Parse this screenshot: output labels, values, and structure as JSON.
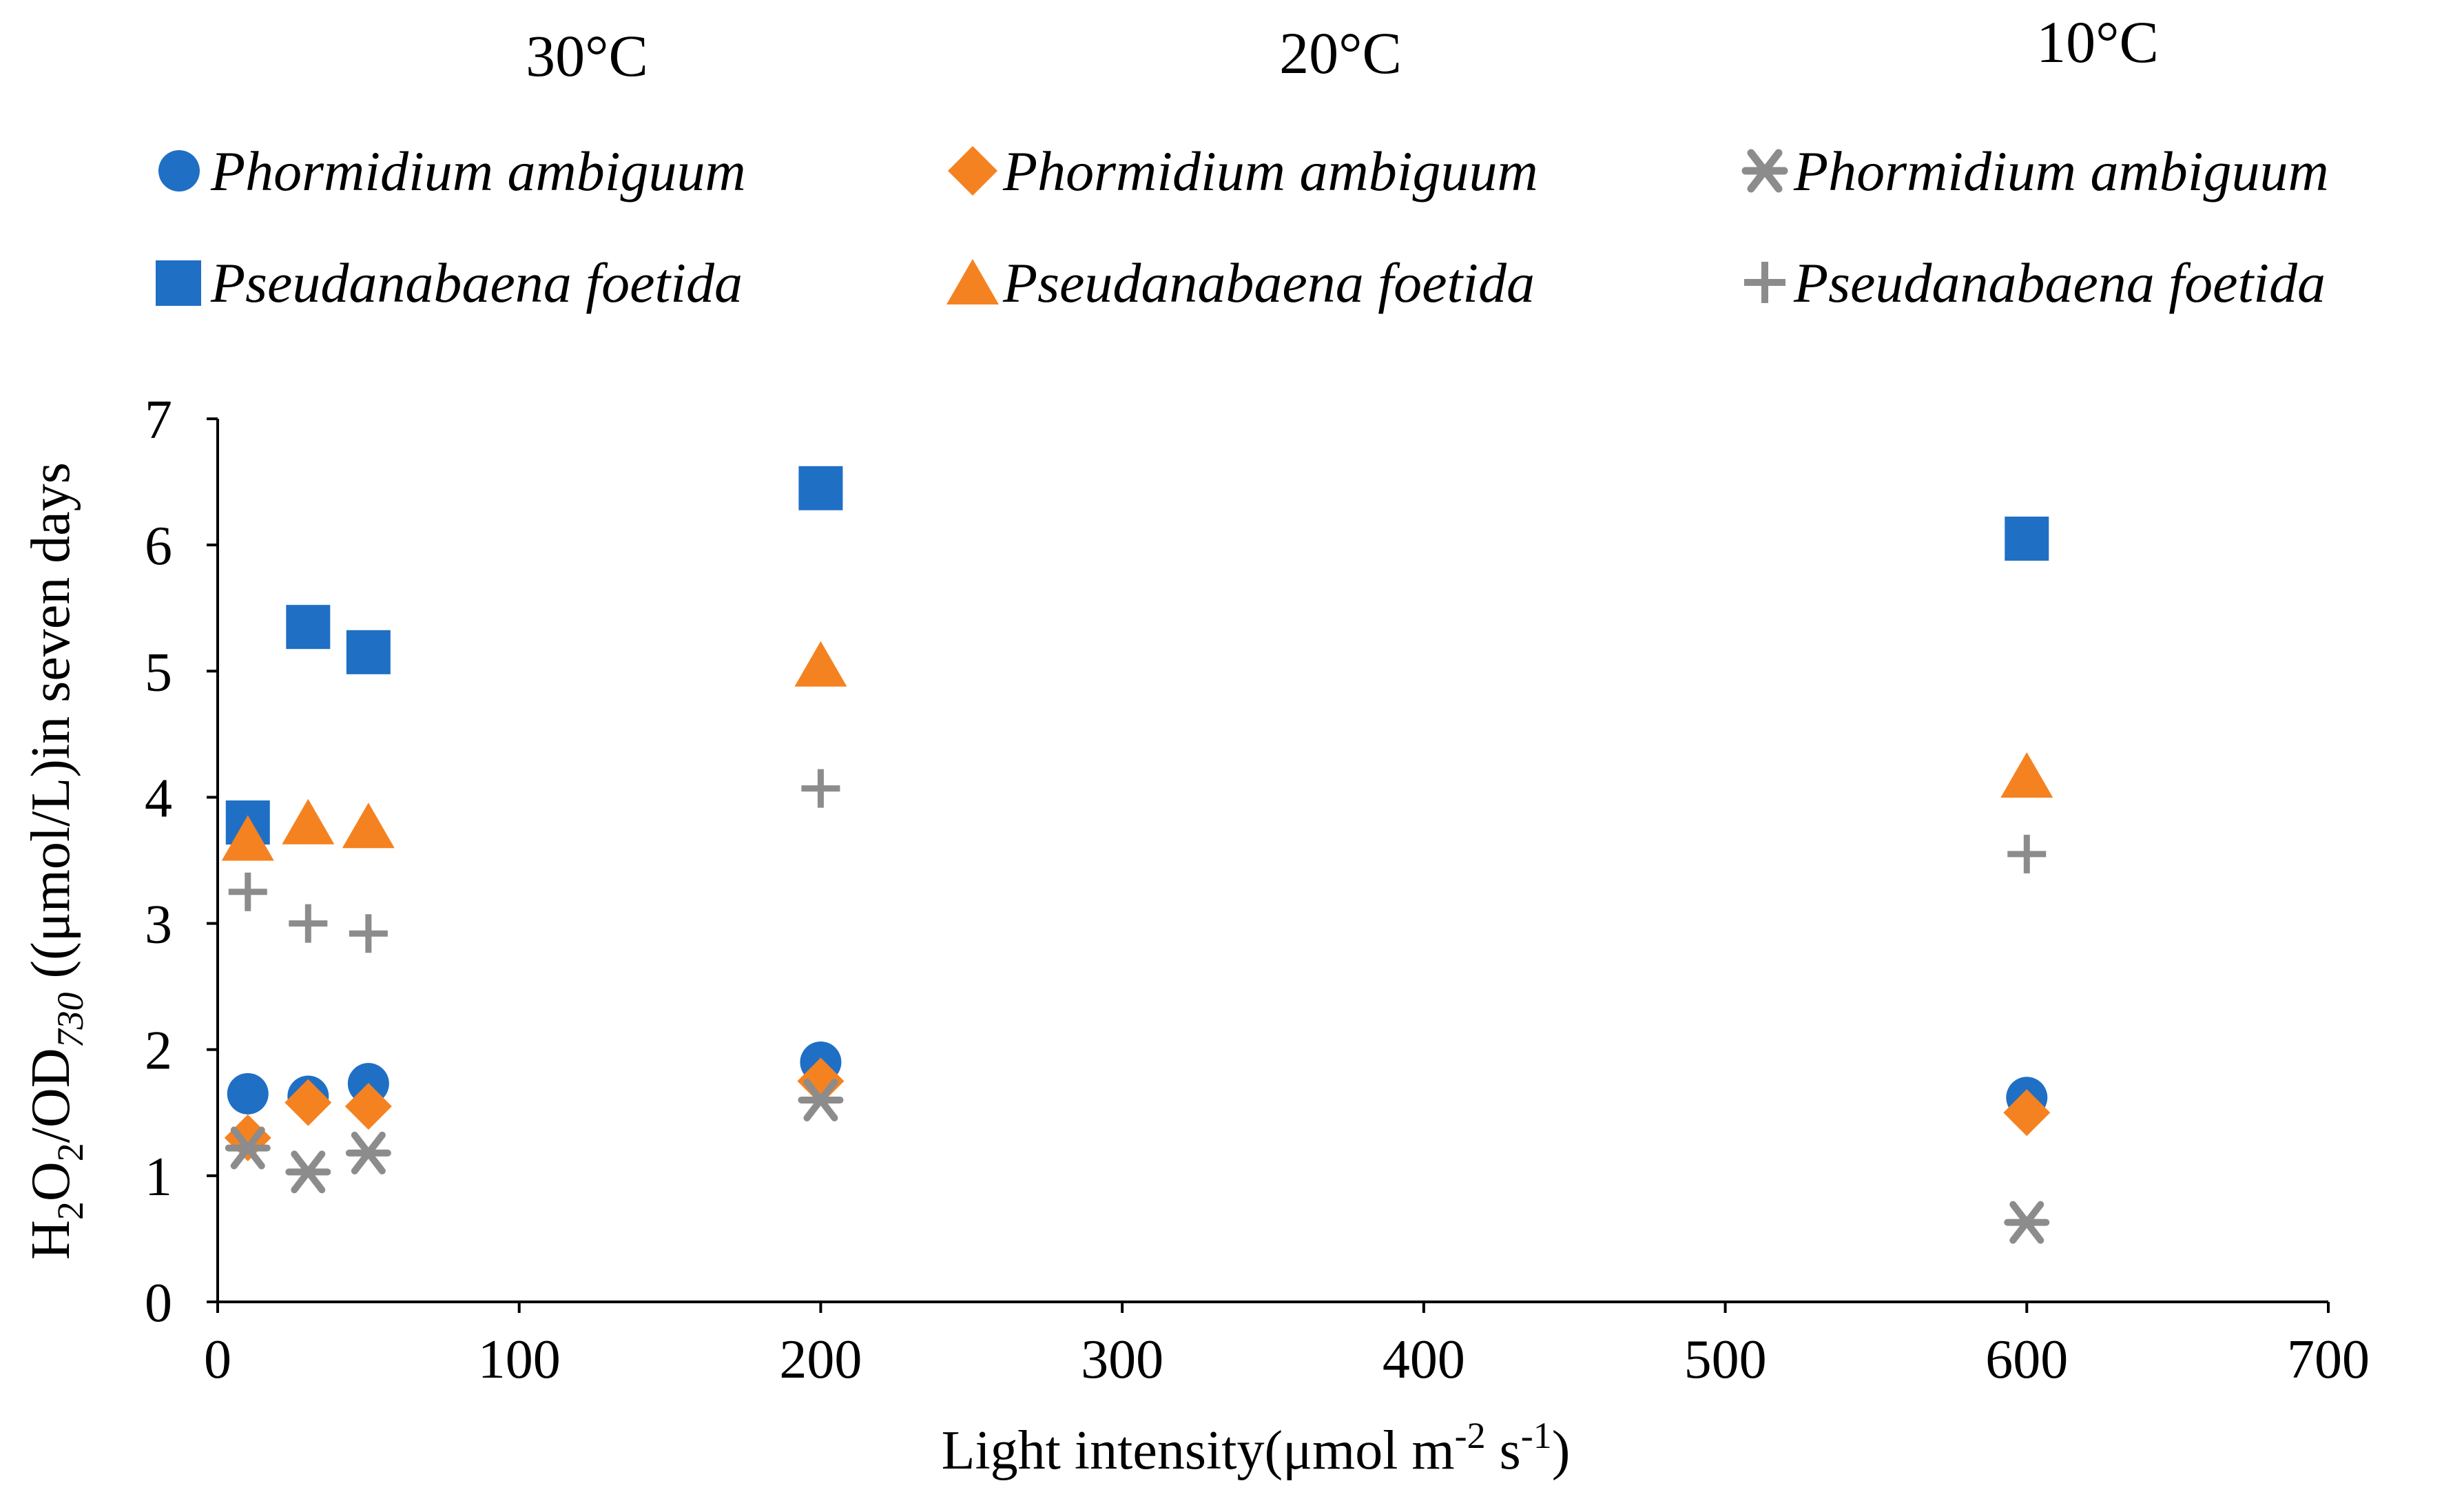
{
  "chart_data": {
    "type": "scatter",
    "title": "",
    "group_headers": [
      "30°C",
      "20°C",
      "10°C"
    ],
    "xlabel": {
      "text": "Light intensity(μmol m",
      "sup1": "-2",
      "mid": " s",
      "sup2": "-1",
      "end": ")"
    },
    "ylabel": {
      "p1": "H",
      "s1": "2",
      "p2": "O",
      "s2": "2",
      "p3": "/OD",
      "s3": "730",
      "p4": " ((μmol/L)in seven days"
    },
    "xlim": [
      0,
      700
    ],
    "ylim": [
      0,
      7
    ],
    "x_ticks": [
      0,
      100,
      200,
      300,
      400,
      500,
      600,
      700
    ],
    "y_ticks": [
      0,
      1,
      2,
      3,
      4,
      5,
      6,
      7
    ],
    "grid": false,
    "legend_position": "top",
    "series": [
      {
        "name": "Phormidium ambiguum",
        "temperature": "30°C",
        "marker": "circle",
        "color": "#1F6FC5",
        "points": [
          [
            10,
            1.65
          ],
          [
            30,
            1.63
          ],
          [
            50,
            1.73
          ],
          [
            200,
            1.9
          ],
          [
            600,
            1.62
          ]
        ]
      },
      {
        "name": "Pseudanabaena foetida",
        "temperature": "30°C",
        "marker": "square",
        "color": "#1F6FC5",
        "points": [
          [
            10,
            3.8
          ],
          [
            30,
            5.35
          ],
          [
            50,
            5.15
          ],
          [
            200,
            6.45
          ],
          [
            600,
            6.05
          ]
        ]
      },
      {
        "name": "Phormidium ambiguum",
        "temperature": "20°C",
        "marker": "diamond",
        "color": "#F58220",
        "points": [
          [
            10,
            1.3
          ],
          [
            30,
            1.58
          ],
          [
            50,
            1.55
          ],
          [
            200,
            1.75
          ],
          [
            600,
            1.5
          ]
        ]
      },
      {
        "name": "Pseudanabaena foetida",
        "temperature": "20°C",
        "marker": "triangle",
        "color": "#F58220",
        "points": [
          [
            10,
            3.65
          ],
          [
            30,
            3.78
          ],
          [
            50,
            3.75
          ],
          [
            200,
            5.03
          ],
          [
            600,
            4.15
          ]
        ]
      },
      {
        "name": "Phormidium ambiguum",
        "temperature": "10°C",
        "marker": "asterisk",
        "color": "#8C8C8C",
        "points": [
          [
            10,
            1.22
          ],
          [
            30,
            1.03
          ],
          [
            50,
            1.18
          ],
          [
            200,
            1.6
          ],
          [
            600,
            0.63
          ]
        ]
      },
      {
        "name": "Pseudanabaena foetida",
        "temperature": "10°C",
        "marker": "plus",
        "color": "#8C8C8C",
        "points": [
          [
            10,
            3.25
          ],
          [
            30,
            3.0
          ],
          [
            50,
            2.92
          ],
          [
            200,
            4.07
          ],
          [
            600,
            3.55
          ]
        ]
      }
    ]
  }
}
